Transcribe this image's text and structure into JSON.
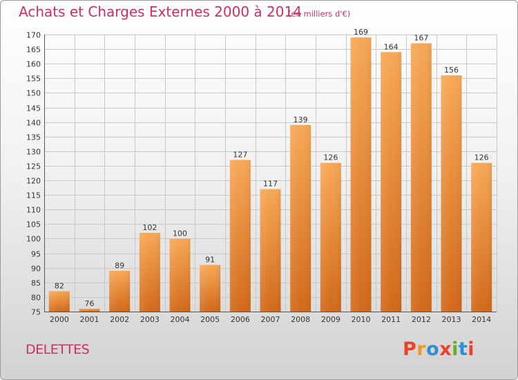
{
  "header": {
    "title": "Achats et Charges Externes 2000 à 2014",
    "subtitle": "(en milliers d'€)"
  },
  "footer": {
    "commune": "DELETTES",
    "logo_text": "Proxiti"
  },
  "colors": {
    "title": "#cc2e66",
    "bar_light": "#f6a552",
    "bar_dark": "#d66d18",
    "grid": "#c8c8c8",
    "logo": [
      "#e8422b",
      "#f39a1b",
      "#2f8fd0",
      "#e8422b",
      "#6aad2e",
      "#2f8fd0",
      "#e8422b"
    ]
  },
  "chart_data": {
    "type": "bar",
    "title": "Achats et Charges Externes 2000 à 2014",
    "subtitle": "(en milliers d'€)",
    "categories": [
      "2000",
      "2001",
      "2002",
      "2003",
      "2004",
      "2005",
      "2006",
      "2007",
      "2008",
      "2009",
      "2010",
      "2011",
      "2012",
      "2013",
      "2014"
    ],
    "values": [
      82,
      76,
      89,
      102,
      100,
      91,
      127,
      117,
      139,
      126,
      169,
      164,
      167,
      156,
      126
    ],
    "ylim": [
      75,
      170
    ],
    "yticks": [
      75,
      80,
      85,
      90,
      95,
      100,
      105,
      110,
      115,
      120,
      125,
      130,
      135,
      140,
      145,
      150,
      155,
      160,
      165,
      170
    ],
    "grid": true,
    "legend": "none"
  }
}
